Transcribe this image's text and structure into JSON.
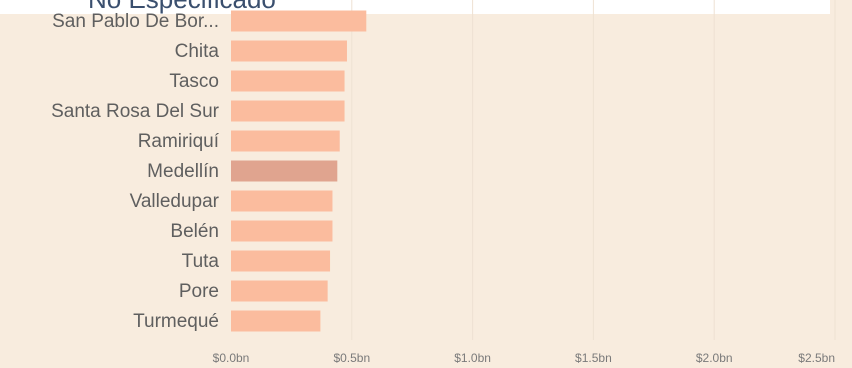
{
  "header": {
    "title_fragment": "No Especificado"
  },
  "colors": {
    "background": "#f8ecde",
    "bar": "#fbbc9e",
    "bar_highlight": "#e0a48f",
    "title_strip": "#ffffff"
  },
  "chart_data": {
    "type": "bar",
    "orientation": "horizontal",
    "title": "",
    "xlabel": "",
    "ylabel": "",
    "categories": [
      "San Pablo De Bor...",
      "Chita",
      "Tasco",
      "Santa Rosa Del Sur",
      "Ramiriquí",
      "Medellín",
      "Valledupar",
      "Belén",
      "Tuta",
      "Pore",
      "Turmequé"
    ],
    "values": [
      0.56,
      0.48,
      0.47,
      0.47,
      0.45,
      0.44,
      0.42,
      0.42,
      0.41,
      0.4,
      0.37
    ],
    "highlighted_category": "Medellín",
    "xlim": [
      0,
      2.5
    ],
    "x_ticks": [
      0,
      0.5,
      1.0,
      1.5,
      2.0,
      2.5
    ],
    "x_tick_labels": [
      "$0.0bn",
      "$0.5bn",
      "$1.0bn",
      "$1.5bn",
      "$2.0bn",
      "$2.5bn"
    ],
    "grid": true,
    "legend": "none"
  }
}
